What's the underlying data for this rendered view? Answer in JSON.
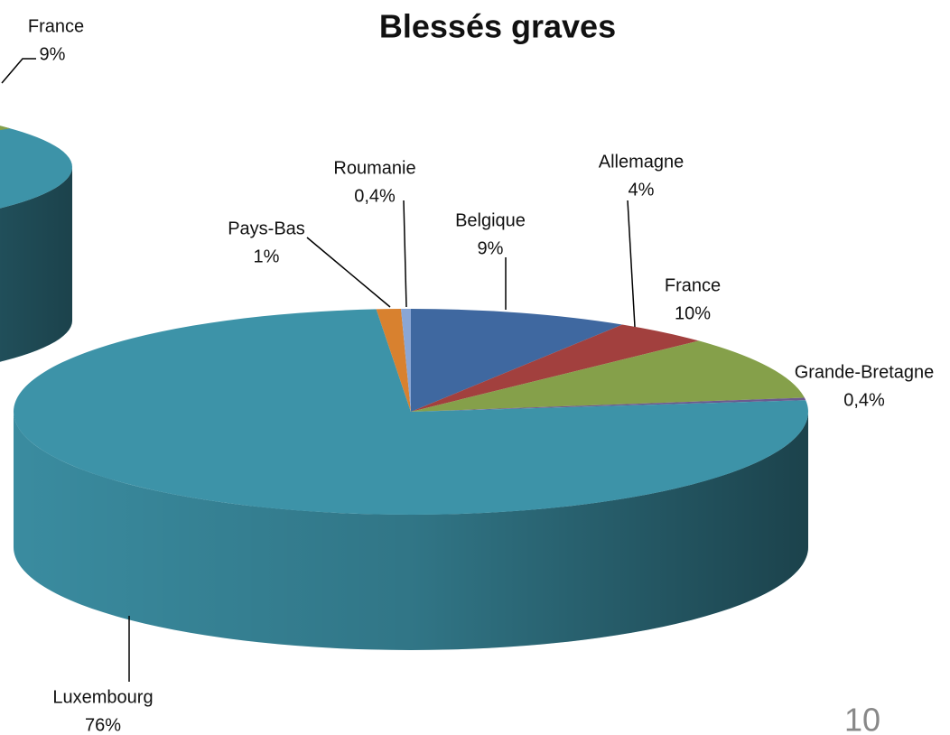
{
  "chart_data": [
    {
      "type": "pie",
      "title": "Blessés graves",
      "categories": [
        "Belgique",
        "Allemagne",
        "France",
        "Grande-Bretagne",
        "Luxembourg",
        "Pays-Bas",
        "Roumanie"
      ],
      "values": [
        9,
        4,
        10,
        0.4,
        76,
        1,
        0.4
      ],
      "value_labels": [
        "9%",
        "4%",
        "10%",
        "0,4%",
        "76%",
        "1%",
        "0,4%"
      ],
      "colors": [
        "#3f68a0",
        "#a2403e",
        "#85a04a",
        "#6b5a8f",
        "#3d93a8",
        "#d8812f",
        "#8aa6d4"
      ]
    },
    {
      "type": "pie",
      "categories": [
        "France"
      ],
      "values": [
        9
      ],
      "value_labels": [
        "9%"
      ],
      "colors": [
        "#85a04a"
      ]
    }
  ],
  "page_number": "10"
}
